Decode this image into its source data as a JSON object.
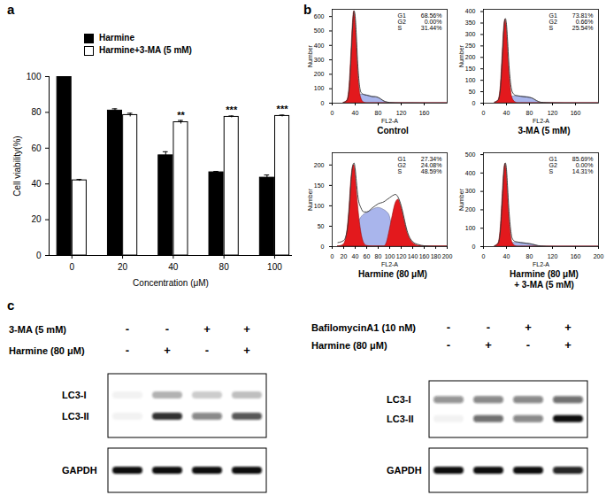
{
  "panel_labels": [
    "a",
    "b",
    "c"
  ],
  "chart_data": [
    {
      "type": "bar",
      "xlabel": "Concentration (μM)",
      "ylabel": "Cell viability(%)",
      "categories": [
        "0",
        "20",
        "40",
        "80",
        "100"
      ],
      "series": [
        {
          "name": "Harmine",
          "color": "#000000",
          "values": [
            100,
            81,
            56,
            46.5,
            43.5
          ],
          "errors": [
            0,
            1,
            2,
            0.5,
            1.5
          ]
        },
        {
          "name": "Harmine+3-MA (5 mM)",
          "color": "#ffffff",
          "values": [
            42,
            78.5,
            74.5,
            77.5,
            78
          ],
          "errors": [
            0.5,
            1,
            1,
            0.5,
            0.5
          ],
          "annotations": [
            null,
            null,
            "**",
            "***",
            "***"
          ]
        }
      ],
      "ylim": [
        0,
        100
      ],
      "yticks": [
        0,
        20,
        40,
        60,
        80,
        100
      ],
      "legend": "top",
      "grid": false
    },
    {
      "type": "area",
      "title": "Control",
      "xlabel": "FL2-A",
      "ylabel": "Number",
      "x": [
        20,
        26,
        30,
        33,
        36,
        38,
        40,
        42,
        44,
        47,
        50,
        55,
        60,
        65,
        70,
        75,
        80,
        85,
        90,
        95,
        100,
        110,
        120,
        140,
        160,
        180,
        200
      ],
      "series": [
        {
          "type": "area",
          "color": "#a9b5ec",
          "values": [
            0,
            0,
            2,
            5,
            10,
            20,
            30,
            40,
            50,
            58,
            60,
            58,
            55,
            50,
            45,
            42,
            35,
            25,
            12,
            5,
            2,
            0,
            0,
            0,
            0,
            0,
            0
          ]
        },
        {
          "type": "area",
          "color": "#e3191d",
          "values": [
            3,
            18,
            115,
            325,
            555,
            635,
            595,
            460,
            290,
            120,
            40,
            5,
            0,
            0,
            0,
            0,
            0,
            0,
            0,
            0,
            0,
            0,
            0,
            0,
            0,
            0,
            0
          ]
        },
        {
          "type": "line",
          "color": "#333333",
          "values": [
            5,
            20,
            120,
            330,
            560,
            640,
            600,
            470,
            300,
            140,
            75,
            60,
            55,
            50,
            45,
            45,
            40,
            28,
            15,
            8,
            4,
            2,
            1,
            1,
            0,
            0,
            0
          ]
        }
      ],
      "annotations": [
        {
          "label": "G1",
          "text": "68.56%"
        },
        {
          "label": "G2",
          "text": "0.00%"
        },
        {
          "label": "S",
          "text": "31.44%"
        }
      ],
      "xlim": [
        0,
        200
      ],
      "xticks": [
        0,
        40,
        80,
        120,
        160
      ],
      "ylim": [
        0,
        650
      ],
      "yticks": [
        0,
        100,
        200,
        300,
        400,
        500,
        600
      ]
    },
    {
      "type": "area",
      "title": "3-MA (5 mM)",
      "xlabel": "FL2-A",
      "ylabel": "Number",
      "x": [
        20,
        26,
        30,
        33,
        36,
        38,
        40,
        42,
        44,
        47,
        50,
        55,
        60,
        65,
        70,
        75,
        80,
        85,
        90,
        95,
        100,
        110,
        120,
        140,
        160,
        180,
        200
      ],
      "series": [
        {
          "type": "area",
          "color": "#a9b5ec",
          "values": [
            0,
            0,
            1,
            3,
            6,
            10,
            14,
            18,
            22,
            26,
            28,
            30,
            30,
            29,
            28,
            27,
            25,
            20,
            12,
            5,
            2,
            0,
            0,
            0,
            0,
            0,
            0
          ]
        },
        {
          "type": "area",
          "color": "#e3191d",
          "values": [
            3,
            13,
            76,
            205,
            335,
            365,
            340,
            262,
            170,
            75,
            25,
            5,
            0,
            0,
            0,
            0,
            0,
            0,
            0,
            0,
            0,
            0,
            0,
            0,
            0,
            0,
            0
          ]
        },
        {
          "type": "line",
          "color": "#333333",
          "values": [
            5,
            15,
            80,
            210,
            340,
            370,
            345,
            270,
            180,
            90,
            50,
            35,
            32,
            30,
            28,
            27,
            25,
            22,
            15,
            8,
            4,
            2,
            1,
            0,
            0,
            0,
            0
          ]
        }
      ],
      "annotations": [
        {
          "label": "G1",
          "text": "73.81%"
        },
        {
          "label": "G2",
          "text": "0.66%"
        },
        {
          "label": "S",
          "text": "25.54%"
        }
      ],
      "xlim": [
        0,
        200
      ],
      "xticks": [
        0,
        40,
        80,
        120,
        160
      ],
      "ylim": [
        0,
        410
      ],
      "yticks": [
        0,
        50,
        100,
        150,
        200,
        250,
        300,
        350,
        400
      ]
    },
    {
      "type": "area",
      "title": "Harmine (80 μM)",
      "xlabel": "FL2-A",
      "ylabel": "Number",
      "x": [
        10,
        20,
        26,
        30,
        33,
        36,
        38,
        40,
        42,
        45,
        50,
        55,
        60,
        70,
        80,
        90,
        95,
        100,
        105,
        110,
        115,
        120,
        125,
        130,
        140,
        150,
        160,
        180,
        200
      ],
      "series": [
        {
          "type": "area",
          "color": "#a9b5ec",
          "values": [
            0,
            0,
            2,
            5,
            8,
            15,
            20,
            28,
            38,
            55,
            70,
            78,
            82,
            90,
            95,
            90,
            85,
            75,
            45,
            25,
            10,
            5,
            2,
            1,
            0,
            0,
            0,
            0,
            0
          ]
        },
        {
          "type": "area",
          "color": "#e3191d",
          "values": [
            0,
            5,
            35,
            95,
            160,
            195,
            200,
            185,
            150,
            100,
            40,
            10,
            2,
            0,
            0,
            0,
            0,
            0,
            0,
            0,
            0,
            0,
            0,
            0,
            0,
            0,
            0,
            0,
            0
          ]
        },
        {
          "type": "area",
          "color": "#e3191d",
          "values": [
            0,
            0,
            0,
            0,
            0,
            0,
            0,
            0,
            0,
            0,
            0,
            0,
            0,
            0,
            0,
            0,
            10,
            40,
            75,
            105,
            115,
            98,
            68,
            38,
            10,
            2,
            0,
            0,
            0
          ]
        },
        {
          "type": "line",
          "color": "#333333",
          "values": [
            10,
            15,
            40,
            100,
            165,
            200,
            205,
            190,
            160,
            120,
            95,
            85,
            85,
            95,
            105,
            110,
            115,
            120,
            125,
            128,
            120,
            100,
            70,
            40,
            12,
            5,
            2,
            0,
            0
          ]
        }
      ],
      "annotations": [
        {
          "label": "G1",
          "text": "27.34%"
        },
        {
          "label": "G2",
          "text": "24.08%"
        },
        {
          "label": "S",
          "text": "48.59%"
        }
      ],
      "xlim": [
        0,
        200
      ],
      "xticks": [
        0,
        20,
        40,
        60,
        80,
        100,
        120,
        140,
        160,
        180,
        200
      ],
      "ylim": [
        0,
        230
      ],
      "yticks": [
        0,
        50,
        100,
        150,
        200
      ]
    },
    {
      "type": "area",
      "title": "Harmine (80 μM)\n+ 3-MA (5 mM)",
      "xlabel": "FL2-A",
      "ylabel": "Number",
      "x": [
        20,
        26,
        30,
        33,
        36,
        38,
        40,
        42,
        44,
        47,
        50,
        55,
        60,
        65,
        70,
        75,
        80,
        85,
        90,
        95,
        100,
        110,
        120,
        140,
        160,
        180,
        200
      ],
      "series": [
        {
          "type": "area",
          "color": "#a9b5ec",
          "values": [
            0,
            0,
            1,
            2,
            4,
            6,
            9,
            12,
            15,
            18,
            20,
            21,
            21,
            20,
            19,
            17,
            15,
            12,
            8,
            4,
            2,
            0,
            0,
            0,
            0,
            0,
            0
          ]
        },
        {
          "type": "area",
          "color": "#e3191d",
          "values": [
            3,
            18,
            106,
            265,
            415,
            450,
            415,
            312,
            200,
            85,
            25,
            4,
            0,
            0,
            0,
            0,
            0,
            0,
            0,
            0,
            0,
            0,
            0,
            0,
            0,
            0,
            0
          ]
        },
        {
          "type": "line",
          "color": "#333333",
          "values": [
            5,
            20,
            110,
            270,
            420,
            455,
            420,
            320,
            210,
            100,
            45,
            28,
            25,
            22,
            20,
            18,
            16,
            13,
            9,
            5,
            3,
            1,
            0,
            0,
            0,
            0,
            0
          ]
        }
      ],
      "annotations": [
        {
          "label": "G1",
          "text": "85.69%"
        },
        {
          "label": "G2",
          "text": "0.00%"
        },
        {
          "label": "S",
          "text": "14.31%"
        }
      ],
      "xlim": [
        0,
        200
      ],
      "xticks": [
        0,
        40,
        80,
        120,
        160,
        200
      ],
      "ylim": [
        0,
        510
      ],
      "yticks": [
        0,
        100,
        200,
        300,
        400,
        500
      ]
    }
  ],
  "blots": [
    {
      "conditions": [
        {
          "label": "3-MA (5 mM)",
          "signs": [
            "-",
            "-",
            "+",
            "+"
          ]
        },
        {
          "label": "Harmine (80 μM)",
          "signs": [
            "-",
            "+",
            "-",
            "+"
          ]
        }
      ],
      "boxes": [
        {
          "rows": [
            {
              "label": "LC3-I",
              "intensity": [
                0.05,
                0.3,
                0.2,
                0.25
              ]
            },
            {
              "label": "LC3-II",
              "intensity": [
                0.05,
                0.85,
                0.5,
                0.7
              ]
            }
          ]
        },
        {
          "rows": [
            {
              "label": "GAPDH",
              "intensity": [
                1,
                1,
                1,
                1
              ]
            }
          ]
        }
      ]
    },
    {
      "conditions": [
        {
          "label": "BafilomycinA1 (10 nM)",
          "signs": [
            "-",
            "-",
            "+",
            "+"
          ]
        },
        {
          "label": "Harmine (80 μM)",
          "signs": [
            "-",
            "+",
            "-",
            "+"
          ]
        }
      ],
      "boxes": [
        {
          "rows": [
            {
              "label": "LC3-I",
              "intensity": [
                0.45,
                0.5,
                0.5,
                0.6
              ]
            },
            {
              "label": "LC3-II",
              "intensity": [
                0.05,
                0.6,
                0.5,
                1
              ]
            }
          ]
        },
        {
          "rows": [
            {
              "label": "GAPDH",
              "intensity": [
                1,
                1,
                1,
                0.9
              ]
            }
          ]
        }
      ]
    }
  ]
}
